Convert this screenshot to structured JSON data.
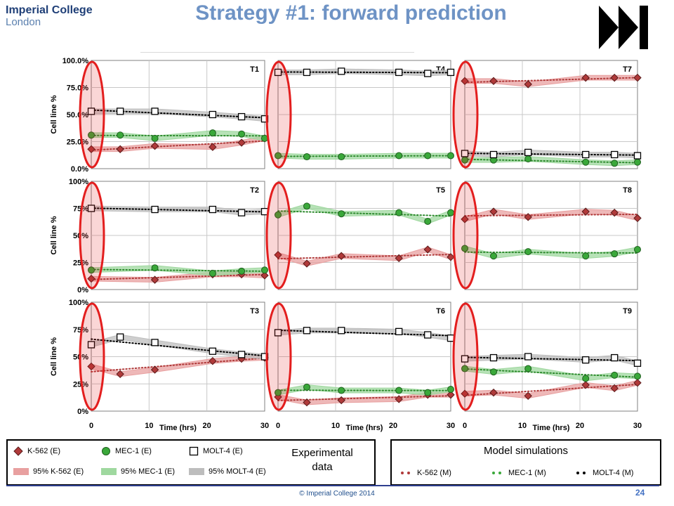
{
  "header": {
    "logo_line1": "Imperial College",
    "logo_line2": "London",
    "title": "Strategy #1: forward prediction",
    "next_icon": "fast-forward-icon"
  },
  "colors": {
    "k562": "#b03a3a",
    "k562_band": "#e8a0a0",
    "mec1": "#3aa83a",
    "mec1_band": "#9fd89f",
    "molt4": "#ffffff",
    "molt4_band": "#bdbdbd",
    "highlight": "#e31e1e"
  },
  "chart_data": {
    "type": "line",
    "ylabel": "Cell line %",
    "xlabel": "Time (hrs)",
    "xlim": [
      0,
      30
    ],
    "xticks": [
      0,
      10,
      20,
      30
    ],
    "ylim": [
      0,
      100
    ],
    "yticks_row1": [
      "100.0%",
      "75.0%",
      "50.0%",
      "25.0%",
      "0.0%"
    ],
    "yticks_other": [
      "100%",
      "75%",
      "50%",
      "25%",
      "0%"
    ],
    "panels": [
      {
        "label": "T1",
        "x": [
          0,
          5,
          11,
          21,
          26,
          30
        ],
        "k562": [
          18,
          18,
          21,
          20,
          24,
          28
        ],
        "mec1": [
          31,
          31,
          28,
          33,
          32,
          28
        ],
        "molt4": [
          53,
          53,
          53,
          50,
          48,
          46
        ]
      },
      {
        "label": "T4",
        "x": [
          0,
          5,
          11,
          21,
          26,
          30
        ],
        "k562": [],
        "mec1": [
          12,
          11,
          11,
          12,
          12,
          12
        ],
        "molt4": [
          89,
          89,
          90,
          89,
          88,
          89
        ]
      },
      {
        "label": "T7",
        "x": [
          0,
          5,
          11,
          21,
          26,
          30
        ],
        "k562": [
          81,
          81,
          78,
          84,
          84,
          84
        ],
        "mec1": [
          8,
          8,
          9,
          6,
          5,
          6
        ],
        "molt4": [
          14,
          13,
          15,
          13,
          13,
          12
        ]
      },
      {
        "label": "T2",
        "x": [
          0,
          11,
          21,
          26,
          30
        ],
        "k562": [
          10,
          9,
          14,
          14,
          13
        ],
        "mec1": [
          18,
          20,
          15,
          17,
          18
        ],
        "molt4": [
          75,
          74,
          74,
          71,
          72
        ]
      },
      {
        "label": "T5",
        "x": [
          0,
          5,
          11,
          21,
          26,
          30
        ],
        "k562": [
          32,
          24,
          31,
          29,
          37,
          30
        ],
        "mec1": [
          69,
          77,
          70,
          71,
          63,
          71
        ],
        "molt4": []
      },
      {
        "label": "T8",
        "x": [
          0,
          5,
          11,
          21,
          26,
          30
        ],
        "k562": [
          65,
          72,
          67,
          72,
          71,
          66
        ],
        "mec1": [
          38,
          31,
          35,
          31,
          33,
          37
        ],
        "molt4": []
      },
      {
        "label": "T3",
        "x": [
          0,
          5,
          11,
          21,
          26,
          30
        ],
        "k562": [
          41,
          34,
          38,
          46,
          48,
          49
        ],
        "mec1": [],
        "molt4": [
          61,
          68,
          63,
          55,
          52,
          50
        ]
      },
      {
        "label": "T6",
        "x": [
          0,
          5,
          11,
          21,
          26,
          30
        ],
        "k562": [
          13,
          8,
          10,
          11,
          15,
          15
        ],
        "mec1": [
          17,
          22,
          19,
          19,
          17,
          20
        ],
        "molt4": [
          72,
          74,
          74,
          73,
          70,
          67
        ]
      },
      {
        "label": "T9",
        "x": [
          0,
          5,
          11,
          21,
          26,
          30
        ],
        "k562": [
          16,
          17,
          14,
          24,
          21,
          26
        ],
        "mec1": [
          39,
          36,
          39,
          30,
          33,
          32
        ],
        "molt4": [
          48,
          49,
          50,
          47,
          49,
          44
        ]
      }
    ]
  },
  "legend_experimental": {
    "title_line1": "Experimental",
    "title_line2": "data",
    "k562": "K-562 (E)",
    "mec1": "MEC-1 (E)",
    "molt4": "MOLT-4 (E)",
    "band_k562": "95% K-562 (E)",
    "band_mec1": "95% MEC-1 (E)",
    "band_molt4": "95% MOLT-4 (E)"
  },
  "legend_model": {
    "title": "Model simulations",
    "k562": "K-562 (M)",
    "mec1": "MEC-1 (M)",
    "molt4": "MOLT-4 (M)"
  },
  "footer": {
    "copyright": "© Imperial College 2014",
    "page_number": "24"
  }
}
